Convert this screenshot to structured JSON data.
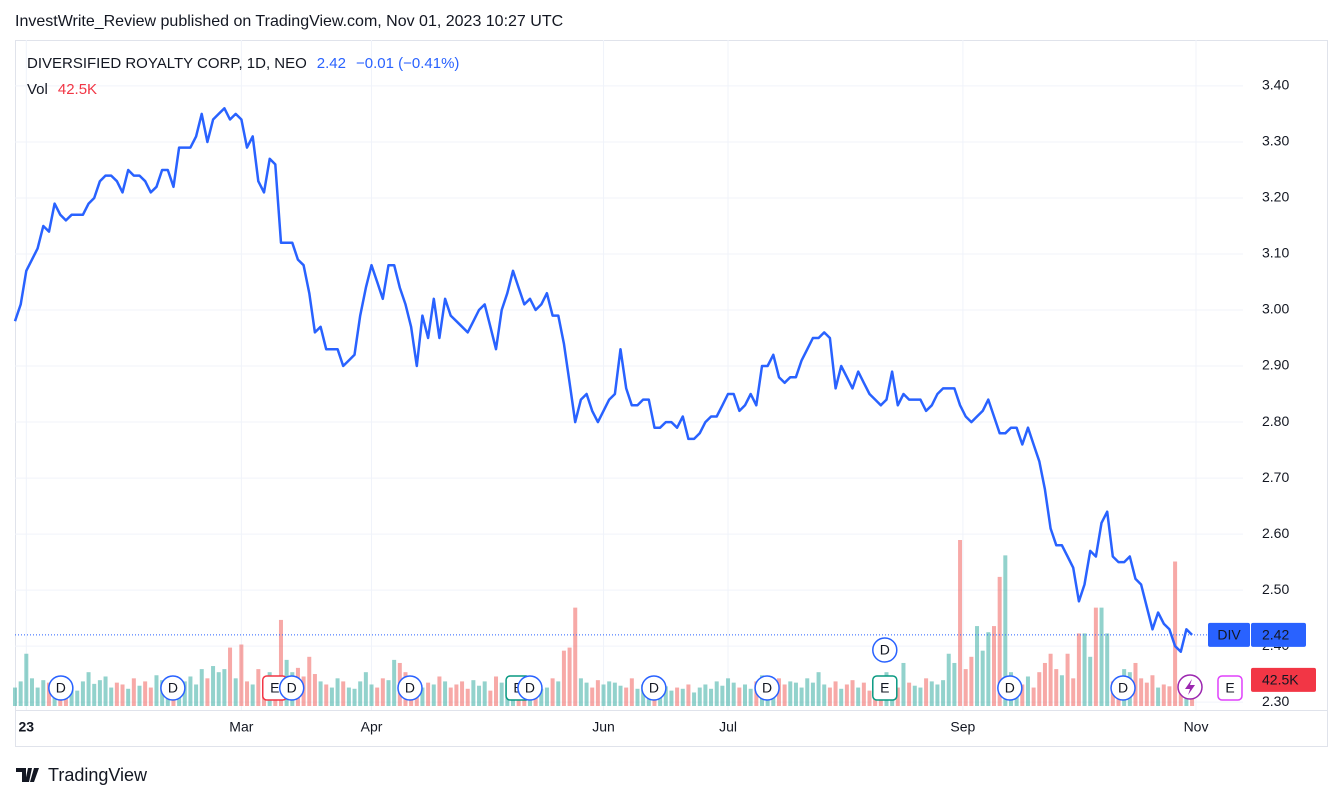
{
  "chart_data": {
    "type": "line",
    "title": "InvestWrite_Review published on TradingView.com, Nov 01, 2023 10:27 UTC",
    "footer": "TradingView",
    "symbol": "DIV",
    "change": "−0.01 (−0.41%)",
    "x": [
      0,
      1,
      2,
      3,
      4,
      5,
      6,
      7,
      8,
      9,
      10,
      11,
      12,
      13,
      14,
      15,
      16,
      17,
      18,
      19,
      20,
      21,
      22,
      23,
      24,
      25,
      26,
      27,
      28,
      29,
      30,
      31,
      32,
      33,
      34,
      35,
      36,
      37,
      38,
      39,
      40,
      41,
      42,
      43,
      44,
      45,
      46,
      47,
      48,
      49,
      50,
      51,
      52,
      53,
      54,
      55,
      56,
      57,
      58,
      59,
      60,
      61,
      62,
      63,
      64,
      65,
      66,
      67,
      68,
      69,
      70,
      71,
      72,
      73,
      74,
      75,
      76,
      77,
      78,
      79,
      80,
      81,
      82,
      83,
      84,
      85,
      86,
      87,
      88,
      89,
      90,
      91,
      92,
      93,
      94,
      95,
      96,
      97,
      98,
      99,
      100,
      101,
      102,
      103,
      104,
      105,
      106,
      107,
      108,
      109,
      110,
      111,
      112,
      113,
      114,
      115,
      116,
      117,
      118,
      119,
      120,
      121,
      122,
      123,
      124,
      125,
      126,
      127,
      128,
      129,
      130,
      131,
      132,
      133,
      134,
      135,
      136,
      137,
      138,
      139,
      140,
      141,
      142,
      143,
      144,
      145,
      146,
      147,
      148,
      149,
      150,
      151,
      152,
      153,
      154,
      155,
      156,
      157,
      158,
      159,
      160,
      161,
      162,
      163,
      164,
      165,
      166,
      167,
      168,
      169,
      170,
      171,
      172,
      173,
      174,
      175,
      176,
      177,
      178,
      179,
      180,
      181,
      182,
      183,
      184,
      185,
      186,
      187,
      188,
      189,
      190,
      191,
      192,
      193,
      194,
      195,
      196,
      197,
      198,
      199,
      200,
      201,
      202,
      203,
      204,
      205,
      206,
      207,
      208
    ],
    "series": [
      {
        "name": "DIVERSIFIED ROYALTY CORP, 1D, NEO",
        "color": "#2962ff",
        "values": [
          2.98,
          3.01,
          3.07,
          3.09,
          3.11,
          3.15,
          3.14,
          3.19,
          3.17,
          3.16,
          3.17,
          3.17,
          3.17,
          3.19,
          3.2,
          3.23,
          3.24,
          3.24,
          3.23,
          3.21,
          3.25,
          3.24,
          3.24,
          3.23,
          3.21,
          3.22,
          3.25,
          3.25,
          3.22,
          3.29,
          3.29,
          3.29,
          3.31,
          3.35,
          3.3,
          3.34,
          3.35,
          3.36,
          3.34,
          3.35,
          3.34,
          3.29,
          3.31,
          3.23,
          3.21,
          3.27,
          3.26,
          3.12,
          3.12,
          3.12,
          3.09,
          3.08,
          3.03,
          2.96,
          2.97,
          2.93,
          2.93,
          2.93,
          2.9,
          2.91,
          2.92,
          2.99,
          3.04,
          3.08,
          3.05,
          3.02,
          3.08,
          3.08,
          3.04,
          3.01,
          2.97,
          2.9,
          2.99,
          2.95,
          3.02,
          2.95,
          3.02,
          2.99,
          2.98,
          2.97,
          2.96,
          2.98,
          3.0,
          3.01,
          2.97,
          2.93,
          3.0,
          3.03,
          3.07,
          3.04,
          3.01,
          3.02,
          3.0,
          3.01,
          3.03,
          2.99,
          2.99,
          2.94,
          2.87,
          2.8,
          2.84,
          2.85,
          2.82,
          2.8,
          2.82,
          2.84,
          2.85,
          2.93,
          2.86,
          2.83,
          2.83,
          2.84,
          2.84,
          2.79,
          2.79,
          2.8,
          2.8,
          2.79,
          2.81,
          2.77,
          2.77,
          2.78,
          2.8,
          2.81,
          2.81,
          2.83,
          2.85,
          2.85,
          2.82,
          2.83,
          2.85,
          2.83,
          2.9,
          2.9,
          2.92,
          2.88,
          2.87,
          2.88,
          2.88,
          2.91,
          2.93,
          2.95,
          2.95,
          2.96,
          2.95,
          2.86,
          2.9,
          2.88,
          2.86,
          2.89,
          2.87,
          2.85,
          2.84,
          2.83,
          2.84,
          2.89,
          2.83,
          2.85,
          2.84,
          2.84,
          2.84,
          2.82,
          2.83,
          2.85,
          2.86,
          2.86,
          2.86,
          2.83,
          2.81,
          2.8,
          2.81,
          2.82,
          2.84,
          2.81,
          2.78,
          2.78,
          2.79,
          2.79,
          2.76,
          2.79,
          2.76,
          2.73,
          2.68,
          2.61,
          2.58,
          2.58,
          2.56,
          2.54,
          2.48,
          2.51,
          2.57,
          2.56,
          2.62,
          2.64,
          2.56,
          2.55,
          2.55,
          2.56,
          2.52,
          2.51,
          2.47,
          2.43,
          2.46,
          2.44,
          2.43,
          2.4,
          2.39,
          2.43,
          2.42
        ]
      },
      {
        "name": "Vol",
        "type": "bar",
        "up_color": "rgba(38,166,154,0.5)",
        "down_color": "rgba(239,83,80,0.5)",
        "label_color": "#f23645",
        "value_label": "42.5K",
        "values": [
          30,
          40,
          85,
          45,
          30,
          42,
          38,
          20,
          35,
          28,
          32,
          25,
          40,
          55,
          36,
          42,
          48,
          30,
          38,
          35,
          28,
          45,
          33,
          40,
          30,
          50,
          42,
          35,
          38,
          45,
          40,
          48,
          35,
          60,
          45,
          65,
          55,
          60,
          95,
          45,
          100,
          40,
          35,
          60,
          40,
          55,
          38,
          140,
          75,
          55,
          62,
          48,
          80,
          52,
          40,
          35,
          30,
          45,
          40,
          30,
          28,
          40,
          55,
          35,
          30,
          45,
          42,
          75,
          70,
          55,
          40,
          45,
          30,
          38,
          35,
          48,
          40,
          30,
          35,
          40,
          28,
          42,
          33,
          40,
          25,
          48,
          38,
          35,
          45,
          30,
          40,
          35,
          42,
          28,
          30,
          45,
          40,
          90,
          95,
          160,
          45,
          38,
          30,
          42,
          35,
          40,
          38,
          33,
          30,
          45,
          28,
          35,
          42,
          30,
          38,
          32,
          25,
          30,
          28,
          35,
          22,
          30,
          35,
          28,
          40,
          33,
          45,
          38,
          30,
          35,
          28,
          40,
          50,
          38,
          30,
          45,
          35,
          40,
          38,
          30,
          45,
          38,
          55,
          35,
          30,
          40,
          28,
          35,
          42,
          30,
          38,
          25,
          33,
          40,
          55,
          28,
          30,
          70,
          38,
          33,
          30,
          45,
          40,
          35,
          42,
          85,
          70,
          270,
          60,
          80,
          130,
          90,
          120,
          130,
          210,
          245,
          55,
          40,
          35,
          48,
          30,
          55,
          70,
          85,
          60,
          50,
          85,
          45,
          118,
          118,
          80,
          160,
          160,
          118,
          40,
          35,
          60,
          55,
          70,
          45,
          38,
          50,
          30,
          35,
          32,
          235,
          40,
          30,
          42.5
        ]
      }
    ],
    "xlim": [
      0,
      217
    ],
    "xticks": [
      {
        "value": 2,
        "label": "23"
      },
      {
        "value": 40,
        "label": "Mar"
      },
      {
        "value": 63,
        "label": "Apr"
      },
      {
        "value": 104,
        "label": "Jun"
      },
      {
        "value": 126,
        "label": "Jul"
      },
      {
        "value": 167.5,
        "label": "Sep"
      },
      {
        "value": 208.7,
        "label": "Nov"
      }
    ],
    "ylim": [
      2.286,
      3.482
    ],
    "yticks": [
      {
        "value": 2.3,
        "label": "2.30"
      },
      {
        "value": 2.4,
        "label": "2.40"
      },
      {
        "value": 2.5,
        "label": "2.50"
      },
      {
        "value": 2.6,
        "label": "2.60"
      },
      {
        "value": 2.7,
        "label": "2.70"
      },
      {
        "value": 2.8,
        "label": "2.80"
      },
      {
        "value": 2.9,
        "label": "2.90"
      },
      {
        "value": 3.0,
        "label": "3.00"
      },
      {
        "value": 3.1,
        "label": "3.10"
      },
      {
        "value": 3.2,
        "label": "3.20"
      },
      {
        "value": 3.3,
        "label": "3.30"
      },
      {
        "value": 3.4,
        "label": "3.40"
      }
    ],
    "grid": true,
    "events": [
      {
        "x": 8.1,
        "label": "D",
        "color": "#2962ff"
      },
      {
        "x": 27.9,
        "label": "D",
        "color": "#2962ff"
      },
      {
        "x": 45.9,
        "label": "E",
        "color": "#f23645"
      },
      {
        "x": 48.9,
        "label": "D",
        "color": "#2962ff"
      },
      {
        "x": 69.8,
        "label": "D",
        "color": "#2962ff"
      },
      {
        "x": 88.9,
        "label": "E",
        "color": "#089981"
      },
      {
        "x": 91.0,
        "label": "D",
        "color": "#2962ff"
      },
      {
        "x": 112.9,
        "label": "D",
        "color": "#2962ff"
      },
      {
        "x": 132.9,
        "label": "D",
        "color": "#2962ff"
      },
      {
        "x": 153.7,
        "label": "E",
        "color": "#089981"
      },
      {
        "x": 153.7,
        "label": "D",
        "color": "#2962ff"
      },
      {
        "x": 175.8,
        "label": "D",
        "color": "#2962ff"
      },
      {
        "x": 195.8,
        "label": "D",
        "color": "#2962ff"
      },
      {
        "x": 214.7,
        "label": "E",
        "color": "#e040fb"
      }
    ]
  }
}
